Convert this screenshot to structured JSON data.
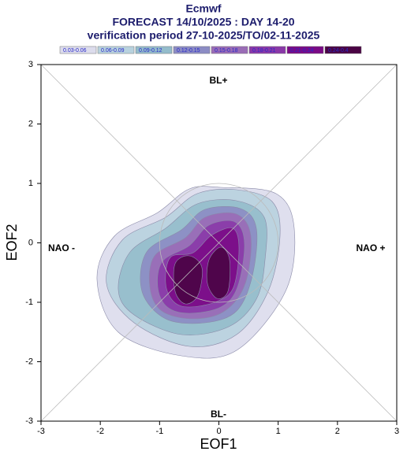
{
  "chart_data": {
    "type": "contour",
    "title": "Ecmwf",
    "subtitle": "FORECAST 14/10/2025 : DAY 14-20",
    "subtitle2": "verification period 27-10-2025/TO/02-11-2025",
    "xlabel": "EOF1",
    "ylabel": "EOF2",
    "xlim": [
      -3,
      3
    ],
    "xticks": [
      -3,
      -2,
      -1,
      0,
      1,
      2,
      3
    ],
    "ylim": [
      -3,
      3
    ],
    "yticks": [
      -3,
      -2,
      -1,
      0,
      1,
      2,
      3
    ],
    "levels": [
      {
        "label": "0.03-0.06",
        "color": "#dcdcec"
      },
      {
        "label": "0.06-0.09",
        "color": "#b8d2de"
      },
      {
        "label": "0.09-0.12",
        "color": "#94bccb"
      },
      {
        "label": "0.12-0.15",
        "color": "#8c8cc4"
      },
      {
        "label": "0.15-0.18",
        "color": "#9a6cb6"
      },
      {
        "label": "0.18-0.21",
        "color": "#8a38a8"
      },
      {
        "label": "0.21-0.24",
        "color": "#7a0a86"
      },
      {
        "label": "0.24-0.4",
        "color": "#4a0444"
      }
    ],
    "annotations": [
      "BL+",
      "BL-",
      "NAO -",
      "NAO +"
    ]
  }
}
